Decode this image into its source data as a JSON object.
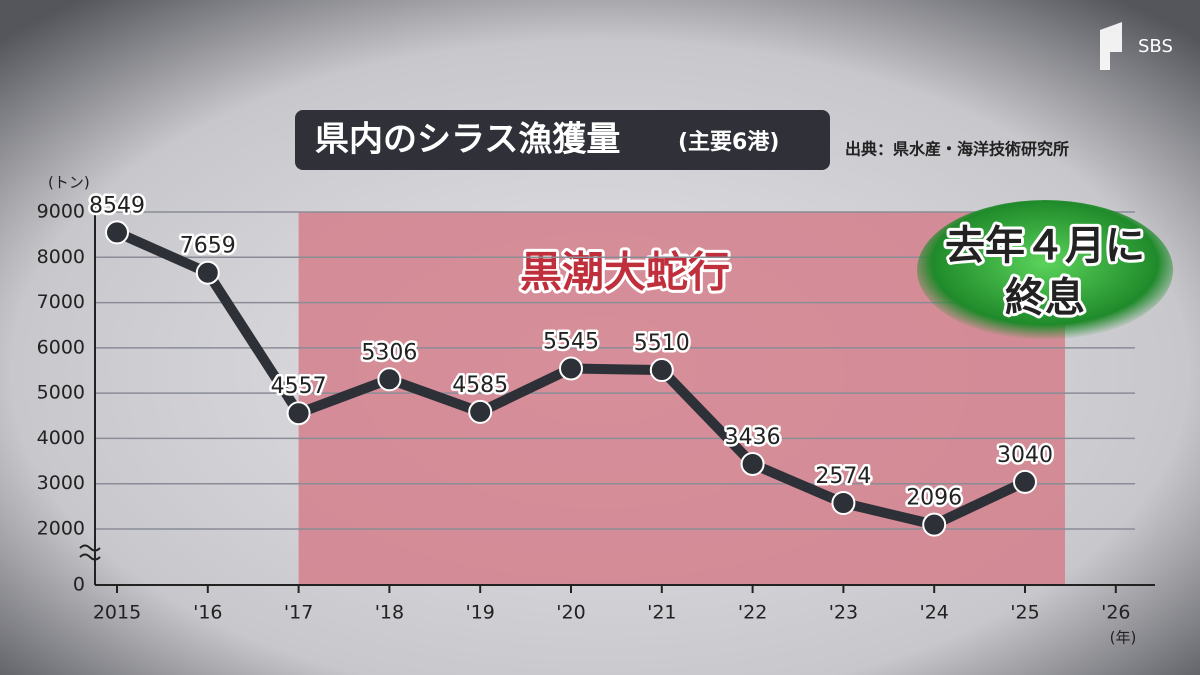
{
  "chart_data": {
    "type": "line",
    "title": "県内のシラス漁獲量",
    "subtitle": "(主要6港)",
    "source": "出典：県水産・海洋技術研究所",
    "y_axis_label": "(トン)",
    "x_axis_label": "(年)",
    "logo": "SBS",
    "categories": [
      "2015",
      "'16",
      "'17",
      "'18",
      "'19",
      "'20",
      "'21",
      "'22",
      "'23",
      "'24",
      "'25",
      "'26"
    ],
    "values": [
      8549,
      7659,
      4557,
      5306,
      4585,
      5545,
      5510,
      3436,
      2574,
      2096,
      3040,
      null
    ],
    "color": "#2e3038",
    "ylim": [
      0,
      9000
    ],
    "yticks": [
      0,
      2000,
      3000,
      4000,
      5000,
      6000,
      7000,
      8000,
      9000
    ],
    "axis_break": true,
    "grid": true,
    "shaded_region": {
      "label": "黒潮大蛇行",
      "from": "'17",
      "to": "'25",
      "color": "#d4808c"
    },
    "callout": {
      "lines": [
        "去年４月に",
        "終息"
      ],
      "color": "#3aa33a"
    }
  }
}
